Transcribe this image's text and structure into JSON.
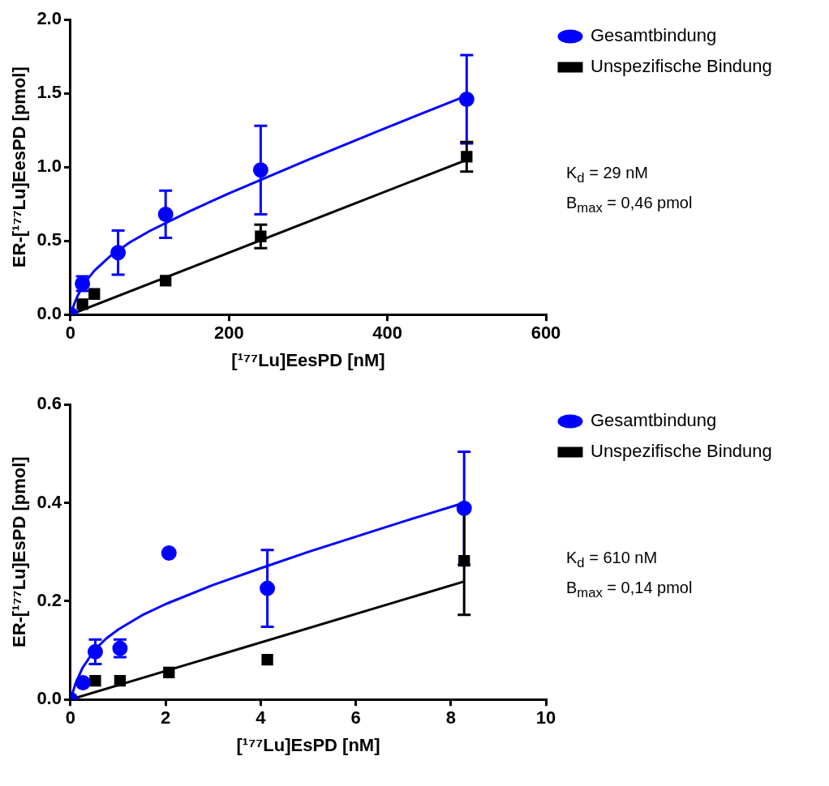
{
  "chart_data": [
    {
      "type": "scatter",
      "xlabel": "[¹⁷⁷Lu]EesPD [nM]",
      "ylabel": "ER-[¹⁷⁷Lu]EesPD [pmol]",
      "xlim": [
        0,
        600
      ],
      "xticks": [
        0,
        200,
        400,
        600
      ],
      "ylim": [
        0,
        2
      ],
      "yticks": [
        {
          "value": 0,
          "label": "0.0"
        },
        {
          "value": 0.5,
          "label": "0.5"
        },
        {
          "value": 1,
          "label": "1.0"
        },
        {
          "value": 1.5,
          "label": "1.5"
        },
        {
          "value": 2,
          "label": "2.0"
        }
      ],
      "grid": false,
      "legend": "top right",
      "annotations": [
        "K$_{d}$ = 29 nM",
        "B$_{max}$ = 0,46 pmol"
      ],
      "series": [
        {
          "type": "line",
          "color": "#0000ff",
          "marker": "none",
          "line_style": "solid",
          "x": [
            0,
            5,
            10,
            20,
            30,
            50,
            75,
            100,
            150,
            200,
            300,
            400,
            505
          ],
          "values": [
            0,
            0.078,
            0.139,
            0.23,
            0.297,
            0.396,
            0.49,
            0.567,
            0.7,
            0.822,
            1.05,
            1.27,
            1.495
          ]
        },
        {
          "type": "line",
          "color": "#000000",
          "marker": "none",
          "line_style": "solid",
          "x": [
            0,
            505
          ],
          "values": [
            0,
            1.06
          ]
        },
        {
          "type": "scatter",
          "name": "Gesamtbindung",
          "color": "#0000ff",
          "marker": "circle",
          "x": [
            0,
            15,
            60,
            120,
            240,
            500
          ],
          "values": [
            0,
            0.21,
            0.42,
            0.68,
            0.98,
            1.46
          ],
          "errors": [
            null,
            0.05,
            0.15,
            0.16,
            0.3,
            0.3
          ]
        },
        {
          "type": "scatter",
          "name": "Unspezifische Bindung",
          "color": "#000000",
          "marker": "square",
          "x": [
            15,
            30,
            120,
            240,
            500
          ],
          "values": [
            0.07,
            0.14,
            0.23,
            0.53,
            1.07
          ],
          "errors": [
            null,
            null,
            null,
            0.08,
            0.1
          ]
        }
      ]
    },
    {
      "type": "scatter",
      "xlabel": "[¹⁷⁷Lu]EsPD [nM]",
      "ylabel": "ER-[¹⁷⁷Lu]EsPD [pmol]",
      "xlim": [
        0,
        10
      ],
      "xticks": [
        0,
        2,
        4,
        6,
        8,
        10
      ],
      "ylim": [
        0,
        0.6
      ],
      "yticks": [
        {
          "value": 0,
          "label": "0.0"
        },
        {
          "value": 0.2,
          "label": "0.2"
        },
        {
          "value": 0.4,
          "label": "0.4"
        },
        {
          "value": 0.6,
          "label": "0.6"
        }
      ],
      "grid": false,
      "legend": "top right",
      "annotations": [
        "K$_{d}$ = 610 nM",
        "B$_{max}$ = 0,14 pmol"
      ],
      "series": [
        {
          "type": "line",
          "color": "#0000ff",
          "marker": "none",
          "line_style": "solid",
          "x": [
            0,
            0.1,
            0.25,
            0.5,
            0.75,
            1,
            1.5,
            2,
            3,
            4,
            5,
            6,
            7,
            8.28
          ],
          "values": [
            0,
            0.031,
            0.064,
            0.1,
            0.124,
            0.142,
            0.171,
            0.194,
            0.233,
            0.267,
            0.3,
            0.331,
            0.362,
            0.4
          ]
        },
        {
          "type": "line",
          "color": "#000000",
          "marker": "none",
          "line_style": "solid",
          "x": [
            0,
            8.28
          ],
          "values": [
            0,
            0.24
          ]
        },
        {
          "type": "scatter",
          "name": "Gesamtbindung",
          "color": "#0000ff",
          "marker": "circle",
          "x": [
            0,
            0.26,
            0.52,
            1.04,
            2.07,
            4.14,
            8.28
          ],
          "values": [
            0,
            0.034,
            0.097,
            0.104,
            0.298,
            0.226,
            0.389
          ],
          "errors": [
            null,
            null,
            0.025,
            0.018,
            null,
            0.078,
            0.115
          ]
        },
        {
          "type": "scatter",
          "name": "Unspezifische Bindung",
          "color": "#000000",
          "marker": "square",
          "x": [
            0.52,
            1.04,
            2.07,
            4.14,
            8.28
          ],
          "values": [
            0.038,
            0.038,
            0.055,
            0.081,
            0.282
          ],
          "errors": [
            null,
            null,
            null,
            null,
            0.11
          ]
        }
      ]
    }
  ]
}
